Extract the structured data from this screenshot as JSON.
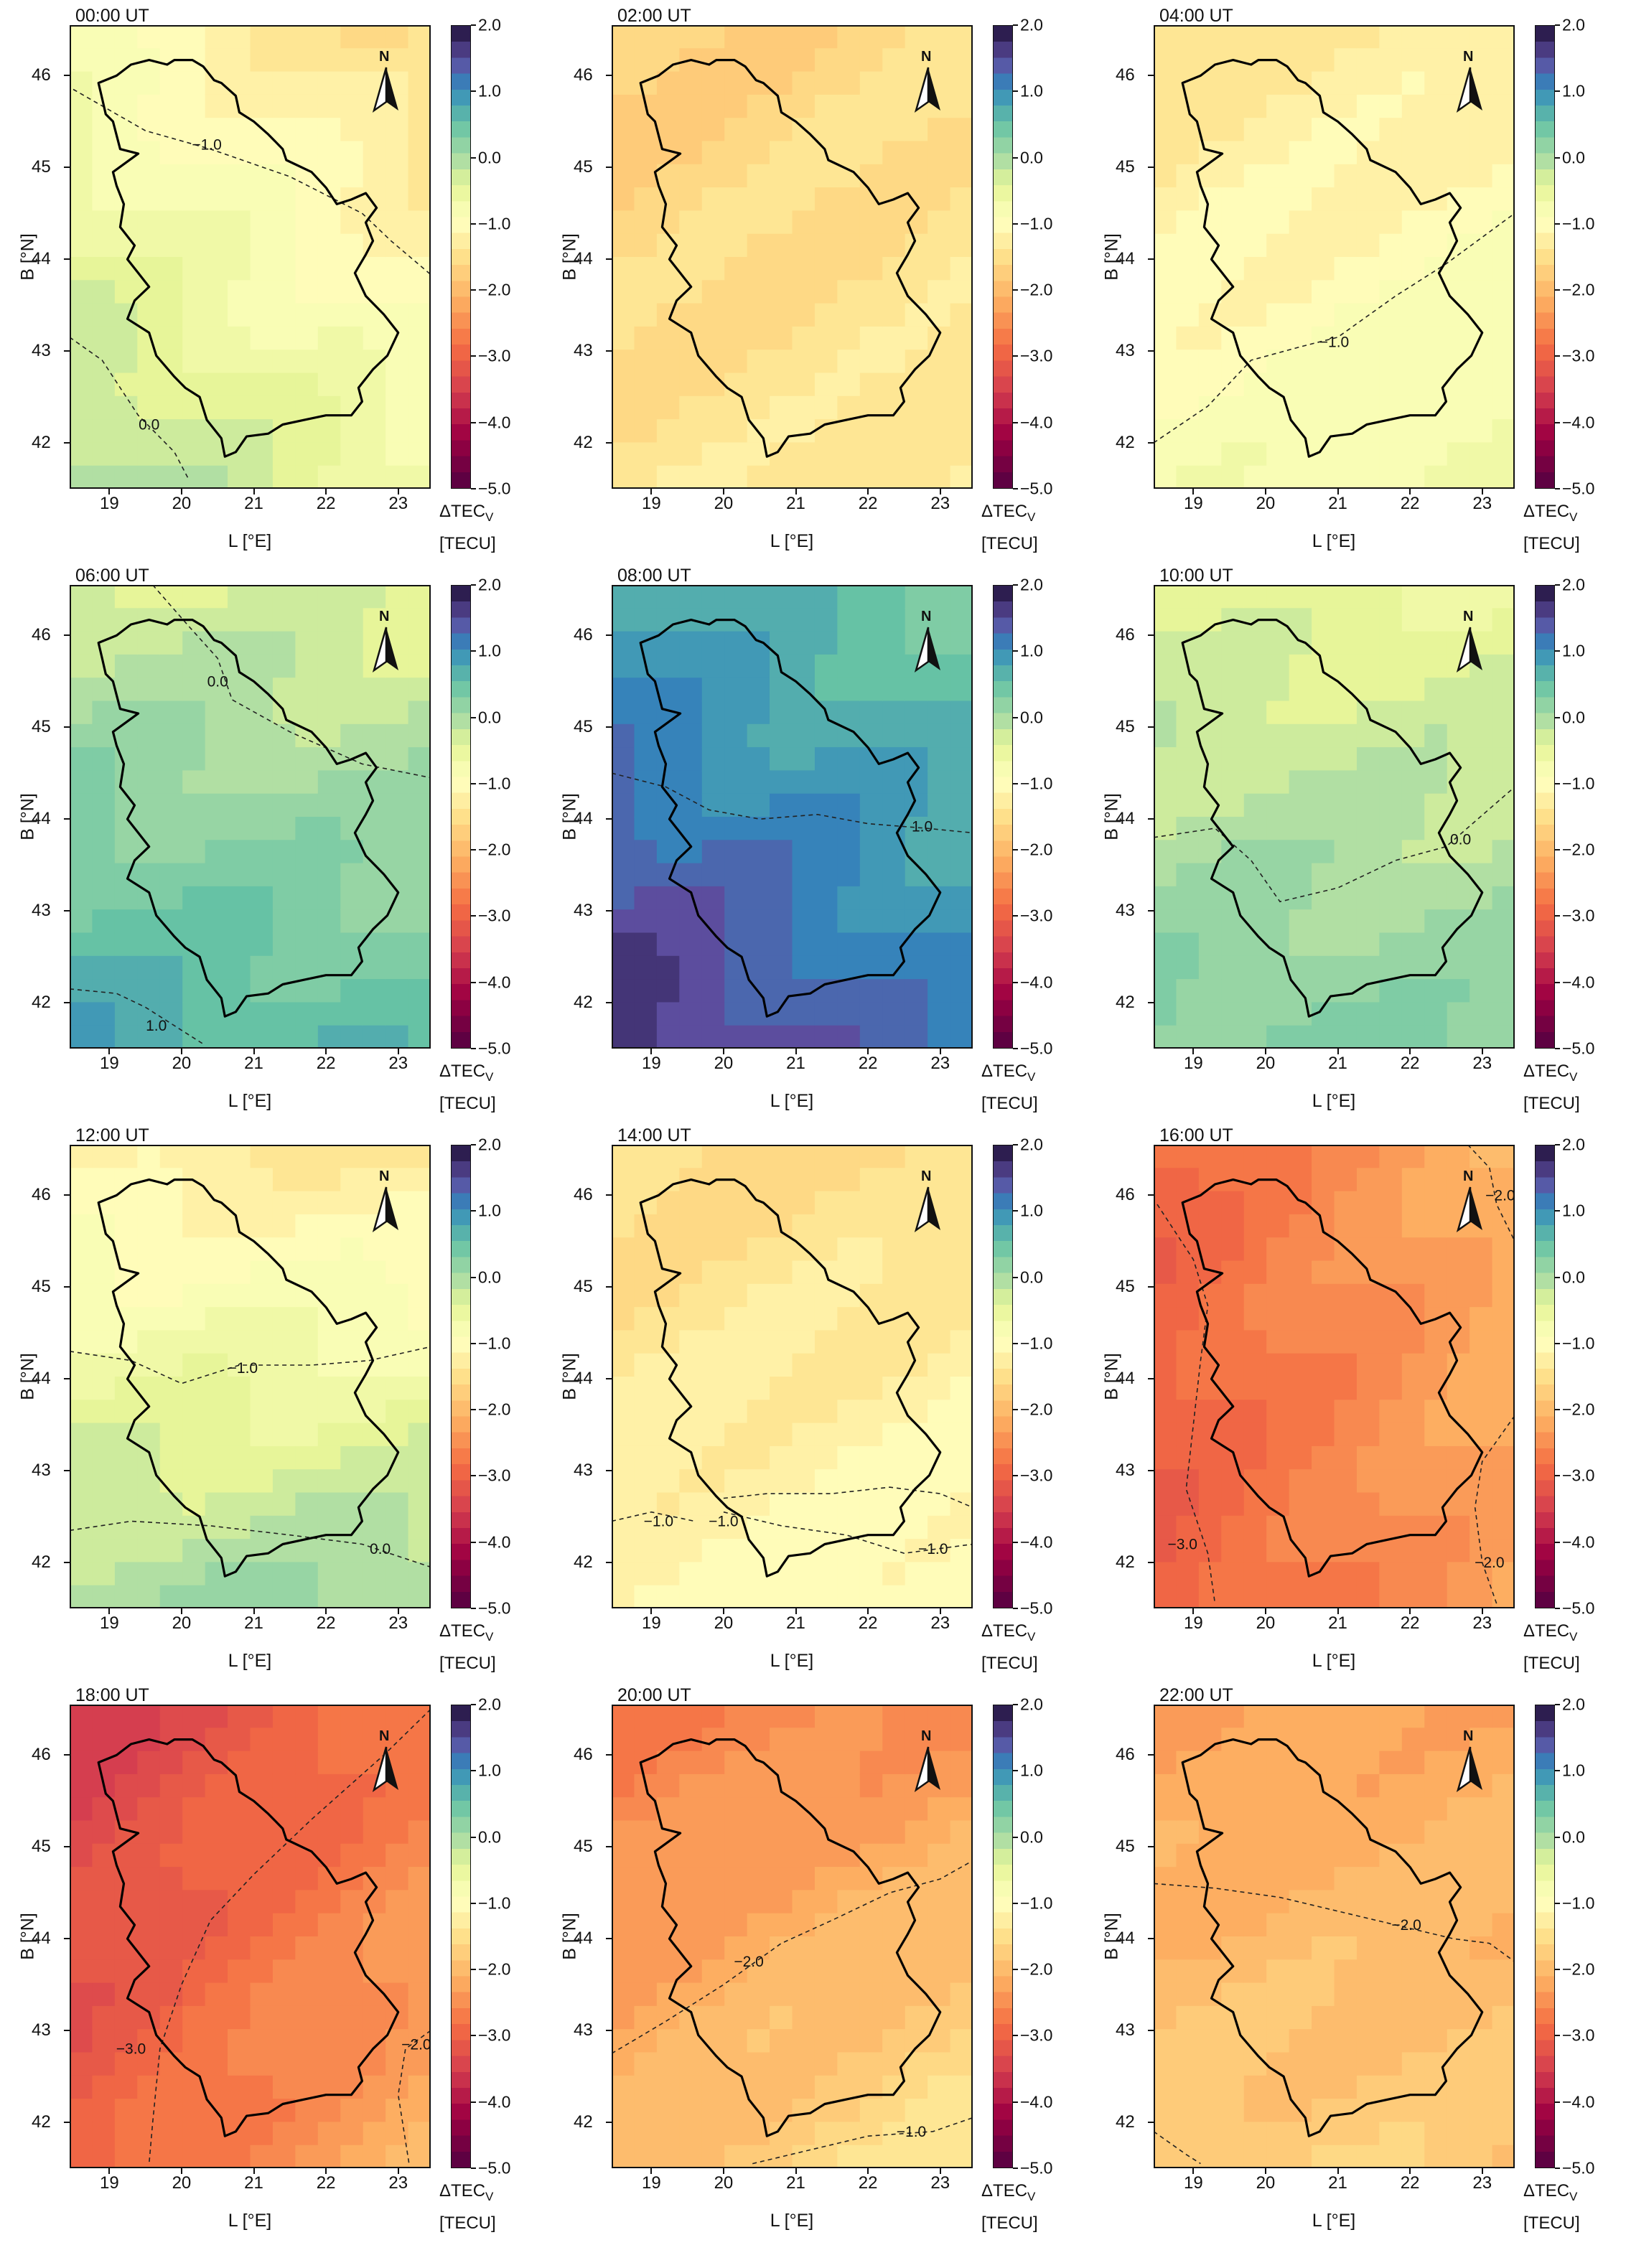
{
  "figure": {
    "x_axis_label": "L [°E]",
    "y_axis_label": "B [°N]",
    "x_ticks": [
      "19",
      "20",
      "21",
      "22",
      "23"
    ],
    "y_ticks": [
      "42",
      "43",
      "44",
      "45",
      "46"
    ],
    "lon_range": [
      18.45,
      23.45
    ],
    "lat_range": [
      41.5,
      46.55
    ],
    "colorbar": {
      "label_main": "ΔTEC",
      "label_sub": "V",
      "unit": "[TECU]",
      "ticks": [
        "2.0",
        "1.0",
        "0.0",
        "−1.0",
        "−2.0",
        "−3.0",
        "−4.0",
        "−5.0"
      ],
      "range": [
        -5.0,
        2.0
      ],
      "colormap": "Spectral"
    },
    "north_arrow_label": "N"
  },
  "panels": [
    {
      "time": "00:00 UT",
      "field": {
        "value_nw": -0.9,
        "value_ne": -1.6,
        "value_sw": 0.1,
        "value_se": -0.6
      },
      "contours": [
        {
          "label": "−1.0"
        },
        {
          "label": "0.0"
        }
      ]
    },
    {
      "time": "02:00 UT",
      "field": {
        "value_nw": -1.8,
        "value_ne": -1.5,
        "value_sw": -1.4,
        "value_se": -1.3
      },
      "contours": []
    },
    {
      "time": "04:00 UT",
      "field": {
        "value_nw": -1.5,
        "value_ne": -1.2,
        "value_sw": -0.8,
        "value_se": -0.6
      },
      "contours": [
        {
          "label": "−1.0"
        }
      ]
    },
    {
      "time": "06:00 UT",
      "field": {
        "value_nw": -0.2,
        "value_ne": -0.4,
        "value_sw": 0.9,
        "value_se": 0.6
      },
      "contours": [
        {
          "label": "0.0"
        },
        {
          "label": "1.0"
        }
      ]
    },
    {
      "time": "08:00 UT",
      "field": {
        "value_nw": 0.9,
        "value_ne": 0.4,
        "value_sw": 1.9,
        "value_se": 1.2
      },
      "contours": [
        {
          "label": "1.0"
        }
      ]
    },
    {
      "time": "10:00 UT",
      "field": {
        "value_nw": -0.4,
        "value_ne": -0.5,
        "value_sw": 0.4,
        "value_se": 0.3
      },
      "contours": [
        {
          "label": "0.0"
        }
      ]
    },
    {
      "time": "12:00 UT",
      "field": {
        "value_nw": -1.2,
        "value_ne": -1.4,
        "value_sw": 0.1,
        "value_se": 0.2
      },
      "contours": [
        {
          "label": "−1.0"
        },
        {
          "label": "0.0"
        }
      ]
    },
    {
      "time": "14:00 UT",
      "field": {
        "value_nw": -1.6,
        "value_ne": -1.5,
        "value_sw": -1.1,
        "value_se": -0.9
      },
      "contours": [
        {
          "label": "−1.0"
        },
        {
          "label": "−1.0"
        },
        {
          "label": "−1.0"
        }
      ]
    },
    {
      "time": "16:00 UT",
      "field": {
        "value_nw": -3.0,
        "value_ne": -2.1,
        "value_sw": -3.1,
        "value_se": -2.3
      },
      "contours": [
        {
          "label": "−2.0"
        },
        {
          "label": "−3.0"
        },
        {
          "label": "−2.0"
        }
      ]
    },
    {
      "time": "18:00 UT",
      "field": {
        "value_nw": -3.6,
        "value_ne": -2.8,
        "value_sw": -3.1,
        "value_se": -2.1
      },
      "contours": [
        {
          "label": "−3.0"
        },
        {
          "label": "−2.0"
        }
      ]
    },
    {
      "time": "20:00 UT",
      "field": {
        "value_nw": -2.8,
        "value_ne": -2.5,
        "value_sw": -2.0,
        "value_se": -1.3
      },
      "contours": [
        {
          "label": "−2.0"
        },
        {
          "label": "−1.0"
        }
      ]
    },
    {
      "time": "22:00 UT",
      "field": {
        "value_nw": -2.4,
        "value_ne": -2.2,
        "value_sw": -1.7,
        "value_se": -1.8
      },
      "contours": [
        {
          "label": "−2.0"
        }
      ]
    }
  ]
}
